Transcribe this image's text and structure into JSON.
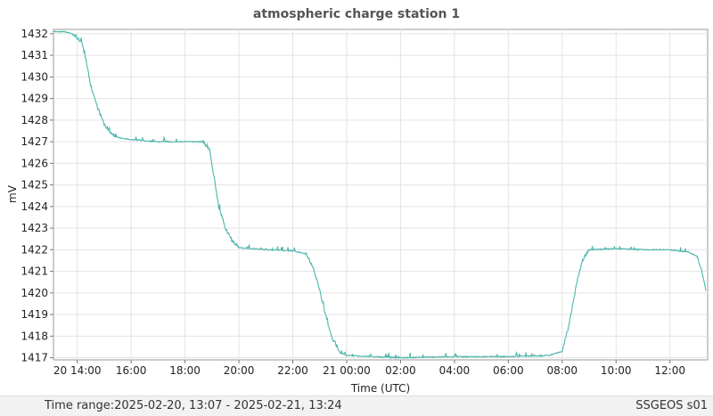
{
  "chart_data": {
    "type": "line",
    "title": "atmospheric charge station 1",
    "xlabel": "Time (UTC)",
    "ylabel": "mV",
    "x_tick_labels": [
      "20 14:00",
      "16:00",
      "18:00",
      "20:00",
      "22:00",
      "21 00:00",
      "02:00",
      "04:00",
      "06:00",
      "08:00",
      "10:00",
      "12:00"
    ],
    "x_ticks": [
      "2025-02-20 14:00",
      "2025-02-20 16:00",
      "2025-02-20 18:00",
      "2025-02-20 20:00",
      "2025-02-20 22:00",
      "2025-02-21 00:00",
      "2025-02-21 02:00",
      "2025-02-21 04:00",
      "2025-02-21 06:00",
      "2025-02-21 08:00",
      "2025-02-21 10:00",
      "2025-02-21 12:00"
    ],
    "xlim": [
      "2025-02-20 13:07",
      "2025-02-21 13:24"
    ],
    "ylim": [
      1416.9,
      1432.2
    ],
    "y_ticks": [
      1417,
      1418,
      1419,
      1420,
      1421,
      1422,
      1423,
      1424,
      1425,
      1426,
      1427,
      1428,
      1429,
      1430,
      1431,
      1432
    ],
    "grid": true,
    "color": "#4db6ac",
    "series": [
      {
        "x": [
          "2025-02-20 13:07",
          "2025-02-20 13:30",
          "2025-02-20 13:50",
          "2025-02-20 14:10",
          "2025-02-20 14:20",
          "2025-02-20 14:30",
          "2025-02-20 14:45",
          "2025-02-20 15:00",
          "2025-02-20 15:15",
          "2025-02-20 15:30",
          "2025-02-20 15:45",
          "2025-02-20 16:00",
          "2025-02-20 17:00",
          "2025-02-20 18:00",
          "2025-02-20 18:40",
          "2025-02-20 18:55",
          "2025-02-20 19:05",
          "2025-02-20 19:15",
          "2025-02-20 19:30",
          "2025-02-20 19:45",
          "2025-02-20 20:00",
          "2025-02-20 21:00",
          "2025-02-20 22:00",
          "2025-02-20 22:30",
          "2025-02-20 22:45",
          "2025-02-20 23:00",
          "2025-02-20 23:15",
          "2025-02-20 23:30",
          "2025-02-20 23:45",
          "2025-02-21 00:00",
          "2025-02-21 02:00",
          "2025-02-21 04:00",
          "2025-02-21 06:00",
          "2025-02-21 07:30",
          "2025-02-21 08:00",
          "2025-02-21 08:15",
          "2025-02-21 08:30",
          "2025-02-21 08:45",
          "2025-02-21 09:00",
          "2025-02-21 10:00",
          "2025-02-21 11:00",
          "2025-02-21 12:00",
          "2025-02-21 12:40",
          "2025-02-21 13:00",
          "2025-02-21 13:10",
          "2025-02-21 13:20"
        ],
        "y": [
          1432.1,
          1432.1,
          1432.0,
          1431.6,
          1430.7,
          1429.6,
          1428.6,
          1427.8,
          1427.4,
          1427.2,
          1427.15,
          1427.1,
          1427.0,
          1427.0,
          1427.0,
          1426.6,
          1425.3,
          1424.0,
          1423.0,
          1422.4,
          1422.1,
          1422.0,
          1421.95,
          1421.8,
          1421.2,
          1420.1,
          1418.8,
          1417.8,
          1417.3,
          1417.1,
          1417.0,
          1417.05,
          1417.05,
          1417.1,
          1417.3,
          1418.5,
          1420.2,
          1421.5,
          1422.0,
          1422.05,
          1422.0,
          1422.0,
          1421.9,
          1421.7,
          1421.1,
          1420.1
        ]
      }
    ]
  },
  "footer": {
    "time_range_label": "Time range:",
    "time_range_value": "2025-02-20, 13:07 - 2025-02-21, 13:24",
    "station": "SSGEOS s01"
  }
}
